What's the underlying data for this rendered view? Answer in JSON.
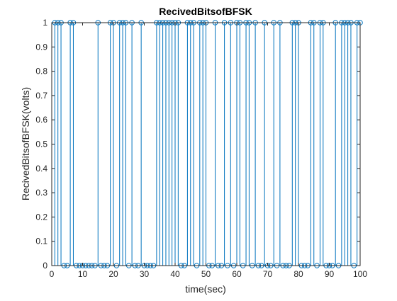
{
  "chart_data": {
    "type": "stem",
    "title": "RecivedBitsofBFSK",
    "xlabel": "time(sec)",
    "ylabel": "RecivedBitsofBFSK(volts)",
    "xlim": [
      0,
      100
    ],
    "ylim": [
      0,
      1
    ],
    "xticks": [
      "0",
      "10",
      "20",
      "30",
      "40",
      "50",
      "60",
      "70",
      "80",
      "90",
      "100"
    ],
    "yticks": [
      "0",
      "0.1",
      "0.2",
      "0.3",
      "0.4",
      "0.5",
      "0.6",
      "0.7",
      "0.8",
      "0.9",
      "1"
    ],
    "x": [
      1,
      2,
      3,
      4,
      5,
      6,
      7,
      8,
      9,
      10,
      11,
      12,
      13,
      14,
      15,
      16,
      17,
      18,
      19,
      20,
      21,
      22,
      23,
      24,
      25,
      26,
      27,
      28,
      29,
      30,
      31,
      32,
      33,
      34,
      35,
      36,
      37,
      38,
      39,
      40,
      41,
      42,
      43,
      44,
      45,
      46,
      47,
      48,
      49,
      50,
      51,
      52,
      53,
      54,
      55,
      56,
      57,
      58,
      59,
      60,
      61,
      62,
      63,
      64,
      65,
      66,
      67,
      68,
      69,
      70,
      71,
      72,
      73,
      74,
      75,
      76,
      77,
      78,
      79,
      80,
      81,
      82,
      83,
      84,
      85,
      86,
      87,
      88,
      89,
      90,
      91,
      92,
      93,
      94,
      95,
      96,
      97,
      98,
      99,
      100
    ],
    "values": [
      1,
      1,
      1,
      0,
      0,
      1,
      1,
      0,
      0,
      0,
      0,
      0,
      0,
      0,
      1,
      0,
      0,
      0,
      1,
      1,
      0,
      1,
      1,
      1,
      0,
      1,
      0,
      0,
      1,
      0,
      0,
      0,
      0,
      1,
      1,
      1,
      1,
      1,
      1,
      1,
      1,
      0,
      0,
      1,
      1,
      1,
      0,
      1,
      1,
      1,
      0,
      0,
      1,
      0,
      0,
      1,
      0,
      1,
      0,
      1,
      1,
      0,
      1,
      1,
      0,
      1,
      0,
      0,
      1,
      0,
      0,
      1,
      0,
      1,
      0,
      0,
      0,
      1,
      1,
      1,
      0,
      0,
      0,
      1,
      1,
      0,
      1,
      1,
      0,
      0,
      0,
      1,
      0,
      1,
      1,
      1,
      1,
      0,
      1,
      1
    ],
    "color": "#0072bd",
    "grid": false
  }
}
